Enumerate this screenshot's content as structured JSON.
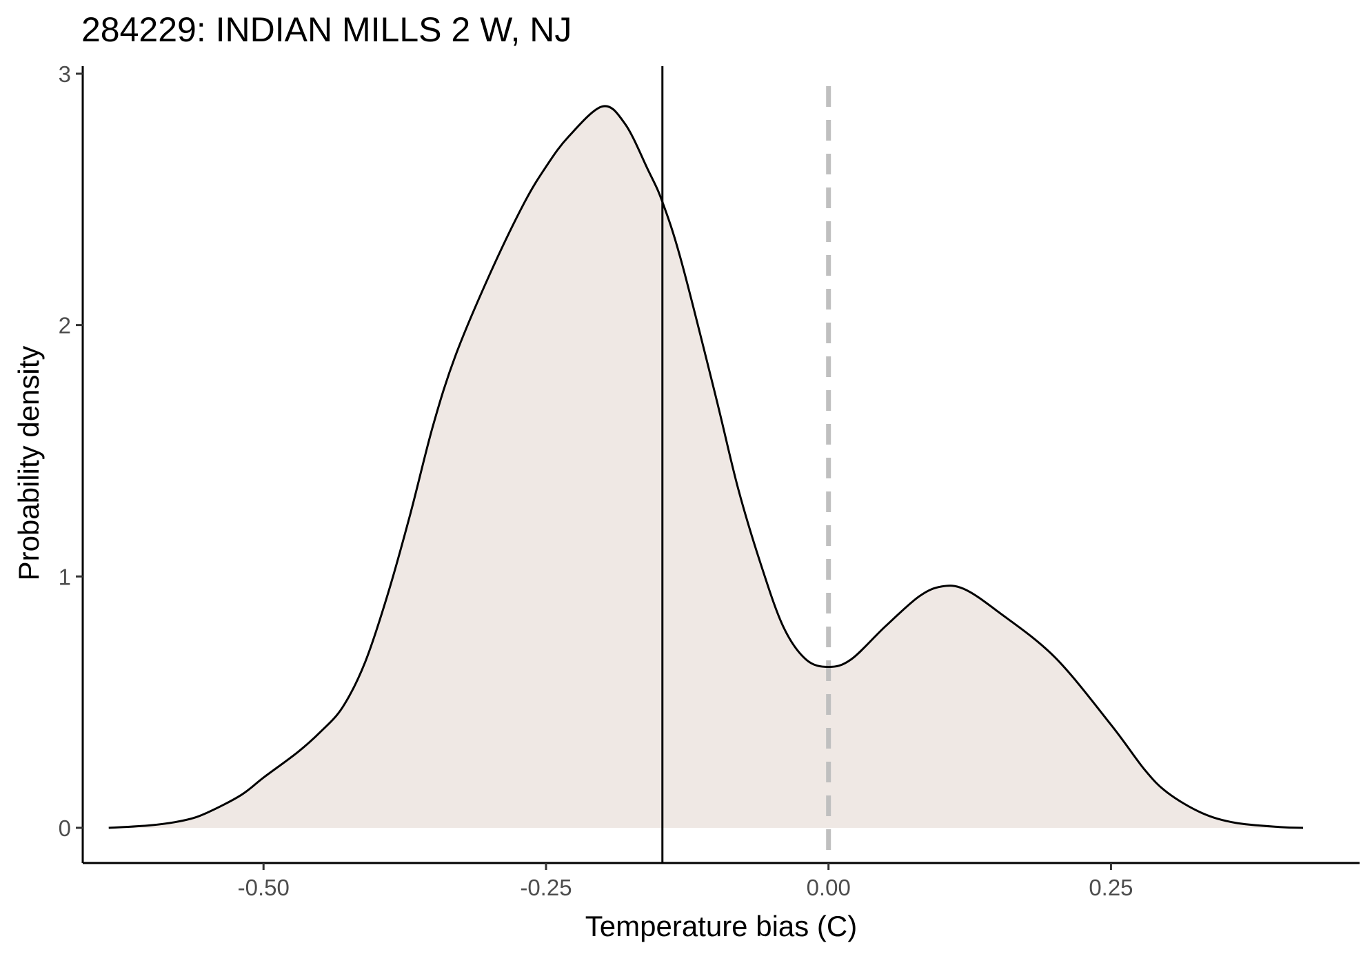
{
  "chart_data": {
    "type": "area",
    "title": "284229: INDIAN MILLS 2 W, NJ",
    "xlabel": "Temperature bias (C)",
    "ylabel": "Probability density",
    "xlim": [
      -0.66,
      0.47
    ],
    "ylim": [
      -0.14,
      3.03
    ],
    "x_ticks": [
      -0.5,
      -0.25,
      0.0,
      0.25
    ],
    "x_tick_labels": [
      "-0.50",
      "-0.25",
      "0.00",
      "0.25"
    ],
    "y_ticks": [
      0,
      1,
      2,
      3
    ],
    "y_tick_labels": [
      "0",
      "1",
      "2",
      "3"
    ],
    "grid": false,
    "fill_color": "#efe8e4",
    "line_color": "#000000",
    "reference_lines": [
      {
        "x": -0.147,
        "style": "solid",
        "color": "#000000"
      },
      {
        "x": 0.0,
        "style": "dashed",
        "color": "#bfbfbf"
      }
    ],
    "series": [
      {
        "x": [
          -0.637,
          -0.6,
          -0.57,
          -0.55,
          -0.52,
          -0.5,
          -0.47,
          -0.45,
          -0.43,
          -0.41,
          -0.39,
          -0.37,
          -0.35,
          -0.33,
          -0.3,
          -0.27,
          -0.25,
          -0.23,
          -0.2,
          -0.18,
          -0.16,
          -0.147,
          -0.13,
          -0.1,
          -0.08,
          -0.06,
          -0.04,
          -0.02,
          0.0,
          0.02,
          0.05,
          0.08,
          0.1,
          0.12,
          0.15,
          0.2,
          0.25,
          0.28,
          0.3,
          0.33,
          0.36,
          0.4,
          0.42
        ],
        "y": [
          0.0,
          0.01,
          0.03,
          0.06,
          0.13,
          0.2,
          0.3,
          0.38,
          0.48,
          0.66,
          0.93,
          1.25,
          1.6,
          1.88,
          2.2,
          2.48,
          2.63,
          2.75,
          2.87,
          2.8,
          2.62,
          2.49,
          2.25,
          1.72,
          1.35,
          1.05,
          0.8,
          0.67,
          0.64,
          0.67,
          0.8,
          0.92,
          0.96,
          0.95,
          0.86,
          0.68,
          0.41,
          0.23,
          0.14,
          0.06,
          0.02,
          0.003,
          0.0
        ]
      }
    ]
  }
}
